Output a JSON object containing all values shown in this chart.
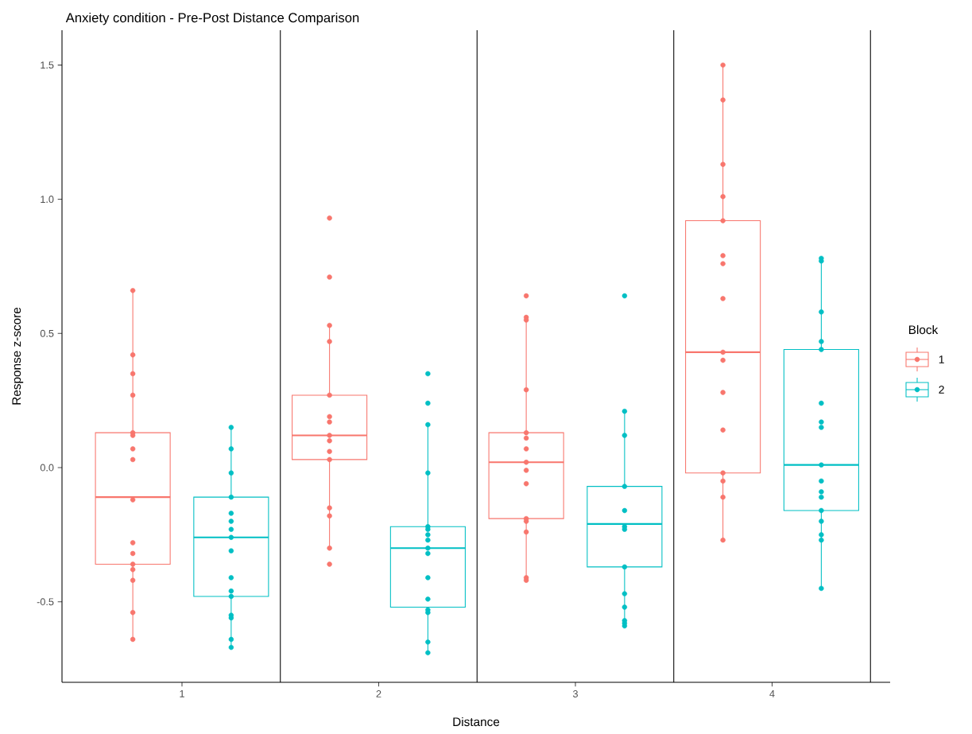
{
  "chart_data": {
    "type": "box",
    "title": "Anxiety condition - Pre-Post Distance Comparison",
    "xlabel": "Distance",
    "ylabel": "Response z-score",
    "legend_title": "Block",
    "legend": "right",
    "grid": false,
    "marker": "circle",
    "categories": [
      "1",
      "2",
      "3",
      "4"
    ],
    "ylim": [
      -0.8,
      1.63
    ],
    "yticks": [
      {
        "value": -0.5,
        "label": "-0.5"
      },
      {
        "value": 0,
        "label": "0.0"
      },
      {
        "value": 0.5,
        "label": "0.5"
      },
      {
        "value": 1,
        "label": "1.0"
      },
      {
        "value": 1.5,
        "label": "1.5"
      }
    ],
    "series": [
      {
        "name": "1",
        "color": "#f8766d",
        "boxes": [
          {
            "low": -0.64,
            "q1": -0.36,
            "median": -0.11,
            "q3": 0.13,
            "high": 0.66
          },
          {
            "low": -0.3,
            "q1": 0.03,
            "median": 0.12,
            "q3": 0.27,
            "high": 0.53
          },
          {
            "low": -0.42,
            "q1": -0.19,
            "median": 0.02,
            "q3": 0.13,
            "high": 0.56
          },
          {
            "low": -0.27,
            "q1": -0.02,
            "median": 0.43,
            "q3": 0.92,
            "high": 1.5
          }
        ]
      },
      {
        "name": "2",
        "color": "#00bfc4",
        "boxes": [
          {
            "low": -0.67,
            "q1": -0.48,
            "median": -0.26,
            "q3": -0.11,
            "high": 0.15
          },
          {
            "low": -0.69,
            "q1": -0.52,
            "median": -0.3,
            "q3": -0.22,
            "high": 0.16
          },
          {
            "low": -0.59,
            "q1": -0.37,
            "median": -0.21,
            "q3": -0.07,
            "high": 0.21
          },
          {
            "low": -0.45,
            "q1": -0.16,
            "median": 0.01,
            "q3": 0.44,
            "high": 0.78
          }
        ]
      },
      {
        "type": "scatter",
        "color": "#f8766d",
        "x": [
          "1",
          "1",
          "1",
          "1",
          "1",
          "1",
          "1",
          "1",
          "1",
          "1",
          "1",
          "1",
          "1",
          "1",
          "1",
          "1",
          "2",
          "2",
          "2",
          "2",
          "2",
          "2",
          "2",
          "2",
          "2",
          "2",
          "2",
          "2",
          "2",
          "2",
          "2",
          "3",
          "3",
          "3",
          "3",
          "3",
          "3",
          "3",
          "3",
          "3",
          "3",
          "3",
          "3",
          "3",
          "3",
          "3",
          "4",
          "4",
          "4",
          "4",
          "4",
          "4",
          "4",
          "4",
          "4",
          "4",
          "4",
          "4",
          "4",
          "4",
          "4",
          "4"
        ],
        "values": [
          0.66,
          0.42,
          0.35,
          0.27,
          0.13,
          0.12,
          0.07,
          0.03,
          -0.12,
          -0.28,
          -0.32,
          -0.36,
          -0.38,
          -0.42,
          -0.54,
          -0.64,
          0.93,
          0.71,
          0.53,
          0.47,
          0.27,
          0.19,
          0.17,
          0.12,
          0.1,
          0.06,
          0.03,
          -0.15,
          -0.18,
          -0.3,
          -0.36,
          0.64,
          0.56,
          0.55,
          0.29,
          0.13,
          0.11,
          0.07,
          0.02,
          -0.01,
          -0.06,
          -0.19,
          -0.2,
          -0.24,
          -0.41,
          -0.42,
          1.5,
          1.37,
          1.13,
          1.01,
          0.92,
          0.79,
          0.76,
          0.63,
          0.43,
          0.4,
          0.28,
          0.14,
          -0.02,
          -0.05,
          -0.11,
          -0.27
        ]
      },
      {
        "type": "scatter",
        "color": "#00bfc4",
        "x": [
          "1",
          "1",
          "1",
          "1",
          "1",
          "1",
          "1",
          "1",
          "1",
          "1",
          "1",
          "1",
          "1",
          "1",
          "1",
          "1",
          "2",
          "2",
          "2",
          "2",
          "2",
          "2",
          "2",
          "2",
          "2",
          "2",
          "2",
          "2",
          "2",
          "2",
          "2",
          "2",
          "3",
          "3",
          "3",
          "3",
          "3",
          "3",
          "3",
          "3",
          "3",
          "3",
          "3",
          "3",
          "3",
          "4",
          "4",
          "4",
          "4",
          "4",
          "4",
          "4",
          "4",
          "4",
          "4",
          "4",
          "4",
          "4",
          "4",
          "4",
          "4",
          "4"
        ],
        "values": [
          0.15,
          0.07,
          -0.02,
          -0.11,
          -0.17,
          -0.2,
          -0.23,
          -0.26,
          -0.31,
          -0.41,
          -0.46,
          -0.48,
          -0.55,
          -0.56,
          -0.64,
          -0.67,
          0.35,
          0.24,
          0.16,
          -0.02,
          -0.22,
          -0.23,
          -0.25,
          -0.27,
          -0.3,
          -0.32,
          -0.41,
          -0.49,
          -0.53,
          -0.54,
          -0.65,
          -0.69,
          0.64,
          0.21,
          0.12,
          -0.07,
          -0.16,
          -0.22,
          -0.23,
          -0.37,
          -0.47,
          -0.52,
          -0.57,
          -0.58,
          -0.59,
          0.78,
          0.77,
          0.58,
          0.47,
          0.44,
          0.24,
          0.17,
          0.15,
          0.01,
          -0.05,
          -0.09,
          -0.11,
          -0.16,
          -0.2,
          -0.25,
          -0.27,
          -0.45
        ]
      }
    ]
  }
}
